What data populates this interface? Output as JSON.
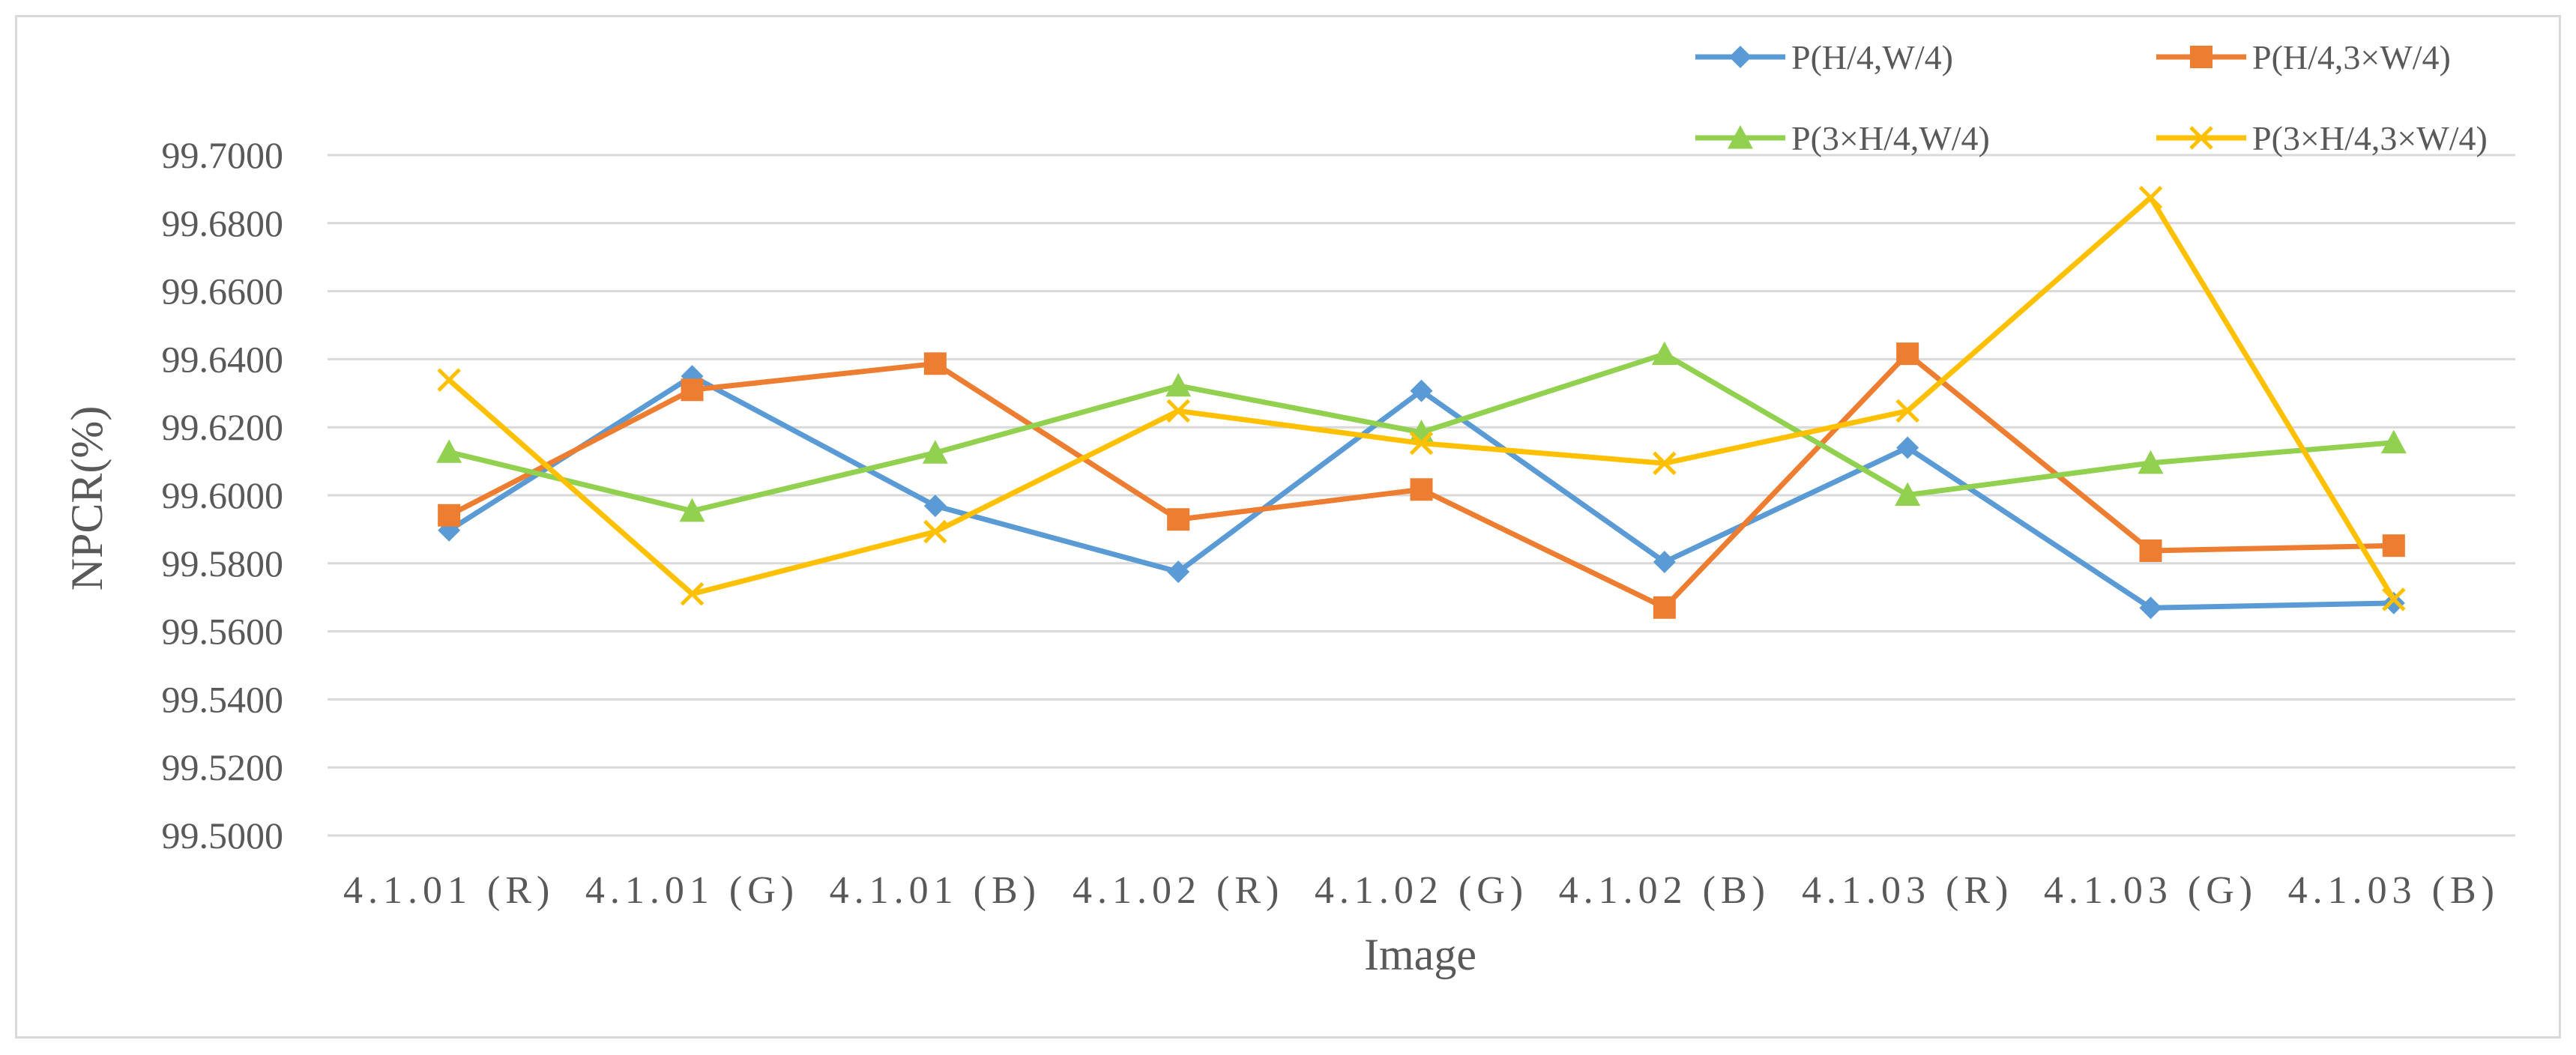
{
  "chart_data": {
    "type": "line",
    "title": "",
    "xlabel": "Image",
    "ylabel": "NPCR(%)",
    "ylim": [
      99.5,
      99.7
    ],
    "yticks": [
      "99.5000",
      "99.5200",
      "99.5400",
      "99.5600",
      "99.5800",
      "99.6000",
      "99.6200",
      "99.6400",
      "99.6600",
      "99.6800",
      "99.7000"
    ],
    "categories": [
      "4.1.01 (R)",
      "4.1.01 (G)",
      "4.1.01 (B)",
      "4.1.02 (R)",
      "4.1.02 (G)",
      "4.1.02 (B)",
      "4.1.03 (R)",
      "4.1.03 (G)",
      "4.1.03 (B)"
    ],
    "grid": "horizontal",
    "legend_position": "top-right",
    "series": [
      {
        "name": "P(H/4,W/4)",
        "color": "#5b9bd5",
        "marker": "diamond",
        "values": [
          99.5897,
          99.635,
          99.5969,
          99.5775,
          99.6307,
          99.5804,
          99.614,
          99.5669,
          99.5683
        ]
      },
      {
        "name": "P(H/4,3×W/4)",
        "color": "#ed7d31",
        "marker": "square",
        "values": [
          99.5941,
          99.631,
          99.6387,
          99.5929,
          99.6017,
          99.567,
          99.6416,
          99.5837,
          99.5852
        ]
      },
      {
        "name": "P(3×H/4,W/4)",
        "color": "#92d050",
        "marker": "triangle",
        "values": [
          99.6127,
          99.5954,
          99.6125,
          99.6322,
          99.6185,
          99.6415,
          99.6001,
          99.6095,
          99.6155
        ]
      },
      {
        "name": "P(3×H/4,3×W/4)",
        "color": "#ffc000",
        "marker": "x",
        "values": [
          99.6339,
          99.571,
          99.5893,
          99.6248,
          99.6153,
          99.6094,
          99.6248,
          99.6875,
          99.5694
        ]
      }
    ]
  }
}
